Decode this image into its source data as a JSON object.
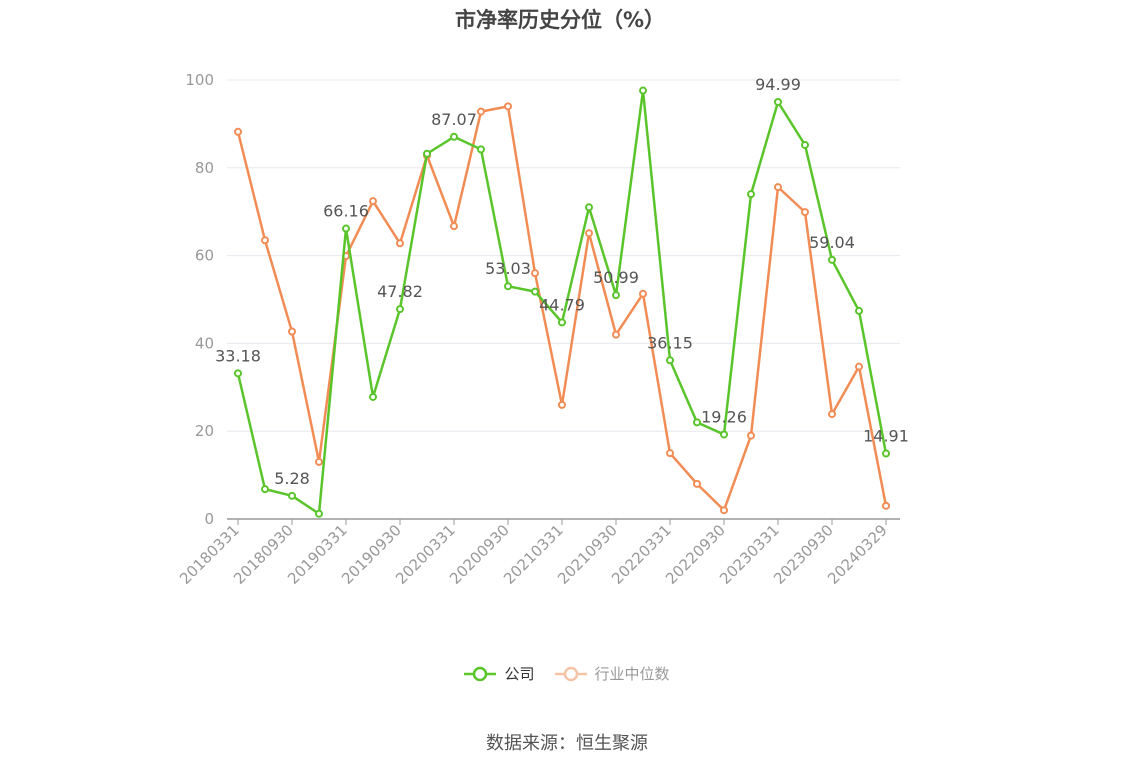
{
  "chart_data": {
    "type": "line",
    "title": "市净率历史分位（%）",
    "x": [
      "20180331",
      "20180630",
      "20180930",
      "20181231",
      "20190331",
      "20190630",
      "20190930",
      "20191231",
      "20200331",
      "20200630",
      "20200930",
      "20201231",
      "20210331",
      "20210630",
      "20210930",
      "20211231",
      "20220331",
      "20220630",
      "20220930",
      "20221231",
      "20230331",
      "20230630",
      "20230930",
      "20231231",
      "20240329"
    ],
    "x_tick_labels": [
      "20180331",
      "20180930",
      "20190331",
      "20190930",
      "20200331",
      "20200930",
      "20210331",
      "20210930",
      "20220331",
      "20220930",
      "20230331",
      "20230930",
      "20240329"
    ],
    "ylim": [
      0,
      100
    ],
    "y_ticks": [
      0,
      20,
      40,
      60,
      80,
      100
    ],
    "grid": true,
    "legend_position": "bottom",
    "series": [
      {
        "name": "公司",
        "color": "#5ac52b",
        "values": [
          33.18,
          6.8,
          5.28,
          1.2,
          66.16,
          27.8,
          47.82,
          83.2,
          87.07,
          84.2,
          53.03,
          51.8,
          44.79,
          71.0,
          50.99,
          97.6,
          36.15,
          22.0,
          19.26,
          74.0,
          94.99,
          85.2,
          59.04,
          47.4,
          14.91
        ],
        "labels": [
          "33.18",
          "",
          "5.28",
          "",
          "66.16",
          "",
          "47.82",
          "",
          "87.07",
          "",
          "53.03",
          "",
          "44.79",
          "",
          "50.99",
          "",
          "36.15",
          "",
          "19.26",
          "",
          "94.99",
          "",
          "59.04",
          "",
          "14.91"
        ]
      },
      {
        "name": "行业中位数",
        "color": "#f28c55",
        "values": [
          88.2,
          63.5,
          42.7,
          13.0,
          59.9,
          72.4,
          62.8,
          82.8,
          66.7,
          92.8,
          94.0,
          56.0,
          26.0,
          65.1,
          42.0,
          51.3,
          15.0,
          8.0,
          2.0,
          19.0,
          75.6,
          69.9,
          23.9,
          34.7,
          3.0
        ]
      }
    ]
  },
  "source": "数据来源：恒生聚源"
}
